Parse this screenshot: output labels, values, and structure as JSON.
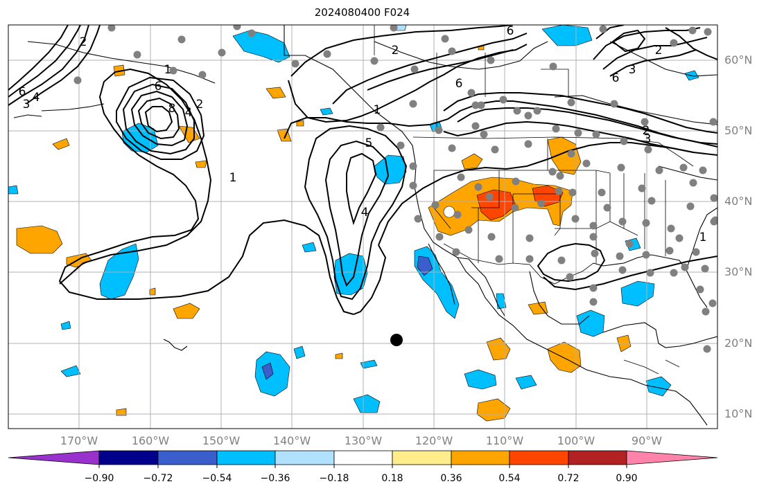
{
  "title": "2024080400 F024",
  "lat_labels": [
    "60°N",
    "50°N",
    "40°N",
    "30°N",
    "20°N",
    "10°N"
  ],
  "lon_labels": [
    "170°W",
    "160°W",
    "150°W",
    "140°W",
    "130°W",
    "120°W",
    "110°W",
    "100°W",
    "90°W"
  ],
  "colorbar": {
    "ticks": [
      "−0.90",
      "−0.72",
      "−0.54",
      "−0.36",
      "−0.18",
      "0.18",
      "0.36",
      "0.54",
      "0.72",
      "0.90"
    ],
    "colors": [
      "#9932cc",
      "#00008b",
      "#3a5fcd",
      "#00bfff",
      "#b0e2ff",
      "#ffffff",
      "#ffec8b",
      "#ffa500",
      "#ff4500",
      "#b22222",
      "#ff83aa"
    ]
  },
  "contour_labels": [
    "6",
    "4",
    "3",
    "2",
    "1",
    "8",
    "6",
    "4",
    "2",
    "1",
    "2",
    "6",
    "5",
    "4",
    "1",
    "6",
    "3",
    "2",
    "1",
    "6",
    "2",
    "3"
  ],
  "map": {
    "extent": {
      "lon": [
        -180,
        -80
      ],
      "lat": [
        8,
        65
      ]
    },
    "gridlines": true,
    "station_color": "#808080",
    "marker_color": "#000000"
  }
}
